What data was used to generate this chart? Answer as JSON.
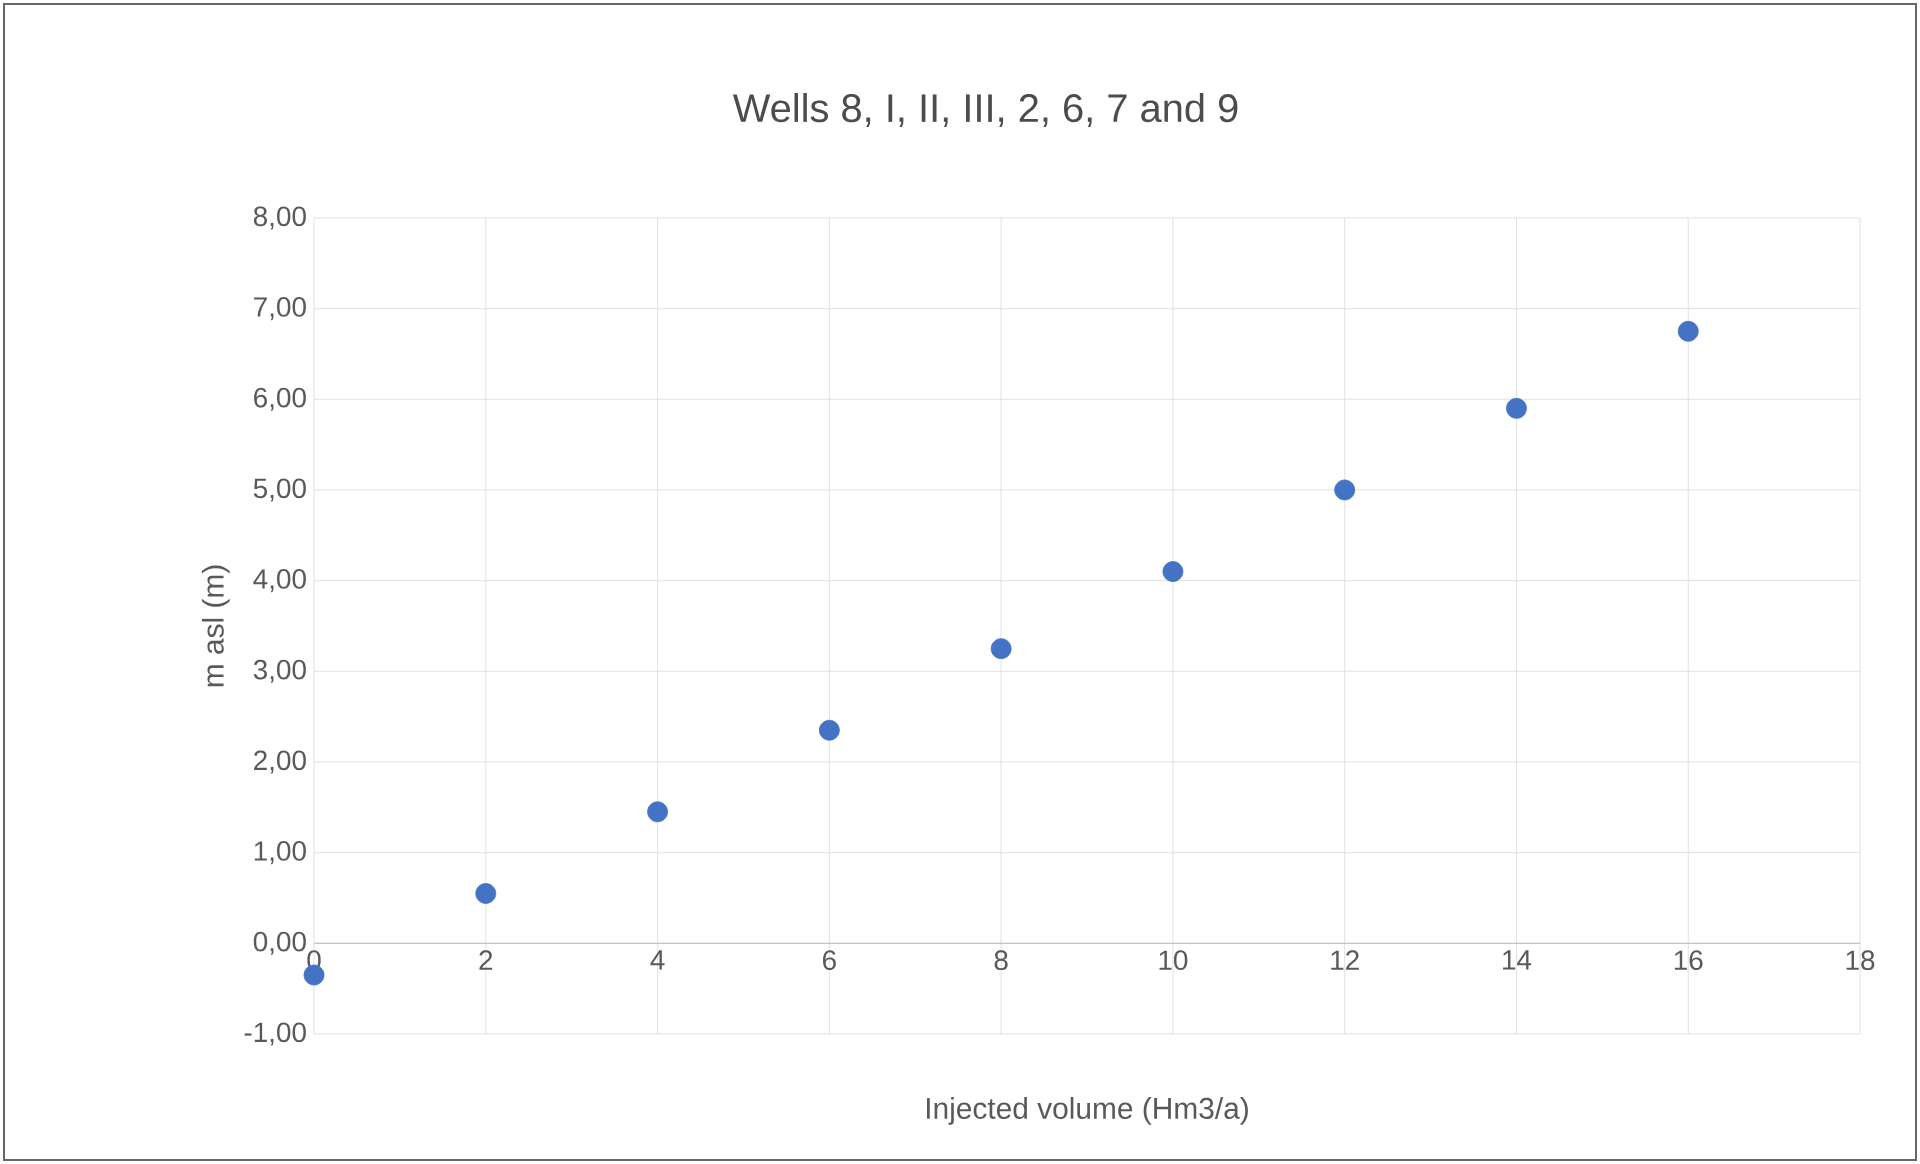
{
  "chart_data": {
    "type": "scatter",
    "title": "Wells 8, I, II, III, 2, 6, 7 and 9",
    "xlabel": "Injected volume (Hm3/a)",
    "ylabel": "m asl (m)",
    "x": [
      0,
      2,
      4,
      6,
      8,
      10,
      12,
      14,
      16
    ],
    "series": [
      {
        "color": "#4472c4",
        "values": [
          -0.35,
          0.55,
          1.45,
          2.35,
          3.25,
          4.1,
          5.0,
          5.9,
          6.75
        ]
      }
    ],
    "xlim": [
      0,
      18
    ],
    "xticks": [
      0,
      2,
      4,
      6,
      8,
      10,
      12,
      14,
      16,
      18
    ],
    "ylim": [
      -1,
      8
    ],
    "yticks": [
      {
        "value": -1,
        "label": "-1,00"
      },
      {
        "value": 0,
        "label": "0,00"
      },
      {
        "value": 1,
        "label": "1,00"
      },
      {
        "value": 2,
        "label": "2,00"
      },
      {
        "value": 3,
        "label": "3,00"
      },
      {
        "value": 4,
        "label": "4,00"
      },
      {
        "value": 5,
        "label": "5,00"
      },
      {
        "value": 6,
        "label": "6,00"
      },
      {
        "value": 7,
        "label": "7,00"
      },
      {
        "value": 8,
        "label": "8,00"
      }
    ],
    "grid": true,
    "marker": "circle",
    "legend": false
  }
}
